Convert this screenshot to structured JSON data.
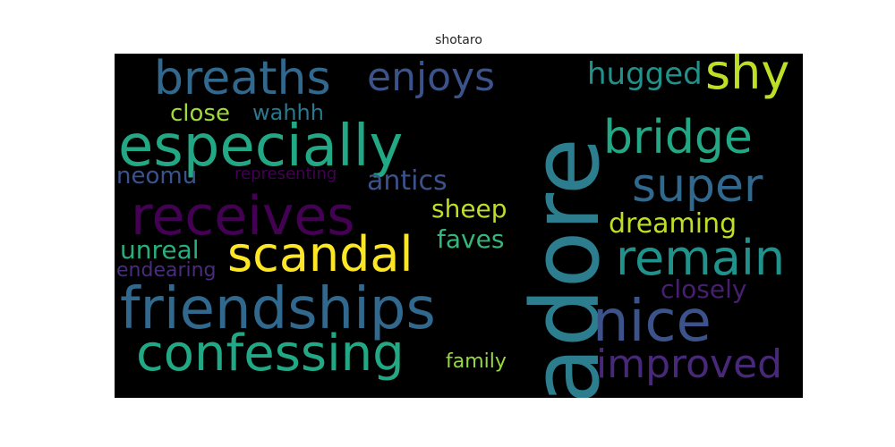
{
  "title": "shotaro",
  "words": [
    {
      "text": "adore",
      "color": "#2c7e8e",
      "vertical": true
    },
    {
      "text": "especially",
      "color": "#22a884"
    },
    {
      "text": "friendships",
      "color": "#31688e"
    },
    {
      "text": "receives",
      "color": "#440154"
    },
    {
      "text": "scandal",
      "color": "#fde725"
    },
    {
      "text": "breaths",
      "color": "#31688e"
    },
    {
      "text": "confessing",
      "color": "#22a884"
    },
    {
      "text": "nice",
      "color": "#3b528b"
    },
    {
      "text": "remain",
      "color": "#21918c"
    },
    {
      "text": "bridge",
      "color": "#22a884"
    },
    {
      "text": "super",
      "color": "#31688e"
    },
    {
      "text": "enjoys",
      "color": "#3b528b"
    },
    {
      "text": "improved",
      "color": "#482878"
    },
    {
      "text": "shy",
      "color": "#bddf26"
    },
    {
      "text": "hugged",
      "color": "#21918c"
    },
    {
      "text": "sheep",
      "color": "#bddf26"
    },
    {
      "text": "dreaming",
      "color": "#bddf26"
    },
    {
      "text": "antics",
      "color": "#3b528b"
    },
    {
      "text": "faves",
      "color": "#35b779"
    },
    {
      "text": "closely",
      "color": "#481f70"
    },
    {
      "text": "unreal",
      "color": "#29af7f"
    },
    {
      "text": "close",
      "color": "#a0da39"
    },
    {
      "text": "wahhh",
      "color": "#2a788e"
    },
    {
      "text": "neomu",
      "color": "#3b528b"
    },
    {
      "text": "family",
      "color": "#95d840"
    },
    {
      "text": "endearing",
      "color": "#472d7b"
    },
    {
      "text": "representing",
      "color": "#440154"
    }
  ]
}
